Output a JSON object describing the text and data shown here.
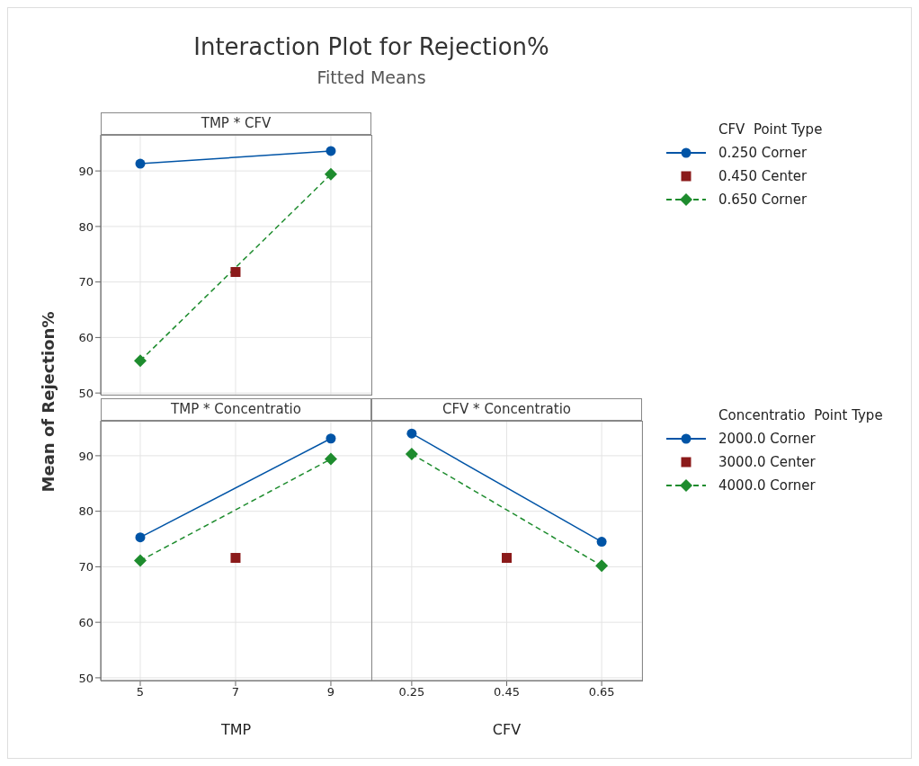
{
  "chart_data": [
    {
      "type": "line",
      "title": "Interaction Plot for Rejection%",
      "subtitle": "Fitted Means",
      "annotations": [
        "TMP * CFV"
      ],
      "ylabel": "Mean of Rejection%",
      "legend_title": "CFV  Point Type",
      "legend": "right",
      "grid": true,
      "tick_labels": "y",
      "xlim": [
        4.17,
        9.85
      ],
      "xticks": [
        5,
        7,
        9
      ],
      "ylim": [
        49.7,
        96.5
      ],
      "yticks": [
        50,
        60,
        70,
        80,
        90
      ],
      "series": [
        {
          "name": "0.250 Corner",
          "type": "line",
          "marker": "circle",
          "line_style": "solid",
          "color": "#0054a6",
          "x": [
            5,
            9
          ],
          "values": [
            91.3,
            93.6
          ]
        },
        {
          "name": "0.450 Center",
          "type": "scatter",
          "marker": "square",
          "color": "#8b1a1a",
          "x": [
            7
          ],
          "values": [
            71.8
          ]
        },
        {
          "name": "0.650 Corner",
          "type": "line",
          "marker": "diamond",
          "line_style": "dashed",
          "color": "#1e8c2e",
          "x": [
            5,
            9
          ],
          "values": [
            55.8,
            89.4
          ]
        }
      ]
    },
    {
      "type": "line",
      "title": "TMP * Concentratio",
      "xlabel": "TMP",
      "grid": true,
      "xlim": [
        4.17,
        9.85
      ],
      "xticks": [
        5,
        7,
        9
      ],
      "ylim": [
        49.5,
        96.3
      ],
      "yticks": [
        50,
        60,
        70,
        80,
        90
      ],
      "series": [
        {
          "type": "line",
          "marker": "circle",
          "line_style": "solid",
          "color": "#0054a6",
          "x": [
            5,
            9
          ],
          "values": [
            75.3,
            93.1
          ]
        },
        {
          "type": "scatter",
          "marker": "square",
          "color": "#8b1a1a",
          "x": [
            7
          ],
          "values": [
            71.6
          ]
        },
        {
          "type": "line",
          "marker": "diamond",
          "line_style": "dashed",
          "color": "#1e8c2e",
          "x": [
            5,
            9
          ],
          "values": [
            71.1,
            89.4
          ]
        }
      ]
    },
    {
      "type": "line",
      "title": "CFV * Concentratio",
      "xlabel": "CFV",
      "legend_title": "Concentratio  Point Type",
      "legend": "right",
      "grid": true,
      "tick_labels": "x",
      "xlim": [
        0.165,
        0.735
      ],
      "xticks": [
        0.25,
        0.45,
        0.65
      ],
      "ylim": [
        49.5,
        96.3
      ],
      "yticks": [
        50,
        60,
        70,
        80,
        90
      ],
      "series": [
        {
          "name": "2000.0 Corner",
          "type": "line",
          "marker": "circle",
          "line_style": "solid",
          "color": "#0054a6",
          "x": [
            0.25,
            0.65
          ],
          "values": [
            94.0,
            74.5
          ]
        },
        {
          "name": "3000.0 Center",
          "type": "scatter",
          "marker": "square",
          "color": "#8b1a1a",
          "x": [
            0.45
          ],
          "values": [
            71.6
          ]
        },
        {
          "name": "4000.0 Corner",
          "type": "line",
          "marker": "diamond",
          "line_style": "dashed",
          "color": "#1e8c2e",
          "x": [
            0.25,
            0.65
          ],
          "values": [
            90.3,
            70.2
          ]
        }
      ]
    }
  ]
}
